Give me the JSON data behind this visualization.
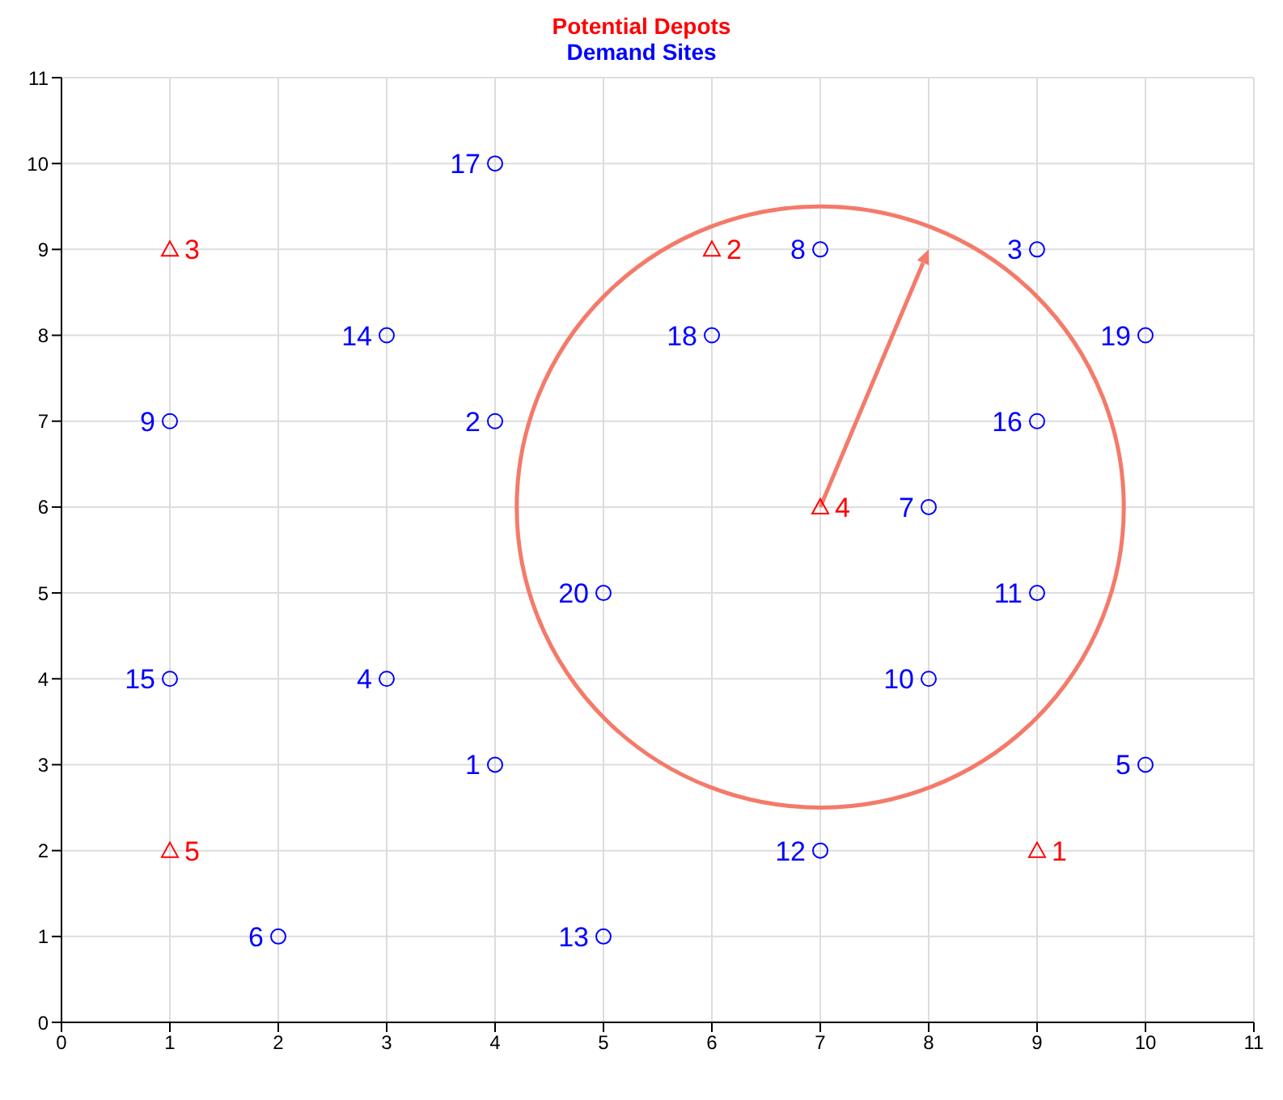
{
  "chart_data": {
    "type": "scatter",
    "title": "Potential Depots",
    "subtitle": "Demand Sites",
    "xlim": [
      0,
      11
    ],
    "ylim": [
      0,
      11
    ],
    "xticks": [
      0,
      1,
      2,
      3,
      4,
      5,
      6,
      7,
      8,
      9,
      10,
      11
    ],
    "yticks": [
      0,
      1,
      2,
      3,
      4,
      5,
      6,
      7,
      8,
      9,
      10,
      11
    ],
    "grid": true,
    "legend": false,
    "series": [
      {
        "color": "#ff0000",
        "marker": "triangle",
        "x": [
          9,
          6,
          1,
          7,
          1
        ],
        "values": [
          2,
          9,
          9,
          6,
          2
        ]
      },
      {
        "color": "#0000ff",
        "marker": "circle",
        "x": [
          4,
          4,
          9,
          3,
          10,
          2,
          8,
          7,
          1,
          8,
          9,
          7,
          5,
          3,
          1,
          9,
          4,
          6,
          10,
          5
        ],
        "values": [
          3,
          7,
          9,
          4,
          3,
          1,
          6,
          9,
          7,
          4,
          5,
          2,
          1,
          8,
          4,
          7,
          10,
          8,
          8,
          5
        ]
      }
    ],
    "annotations": [
      {
        "text": "1",
        "x": 9,
        "y": 2
      },
      {
        "text": "2",
        "x": 6,
        "y": 9
      },
      {
        "text": "3",
        "x": 1,
        "y": 9
      },
      {
        "text": "4",
        "x": 7,
        "y": 6
      },
      {
        "text": "5",
        "x": 1,
        "y": 2
      },
      {
        "text": "1",
        "x": 4,
        "y": 3
      },
      {
        "text": "2",
        "x": 4,
        "y": 7
      },
      {
        "text": "3",
        "x": 9,
        "y": 9
      },
      {
        "text": "4",
        "x": 3,
        "y": 4
      },
      {
        "text": "5",
        "x": 10,
        "y": 3
      },
      {
        "text": "6",
        "x": 2,
        "y": 1
      },
      {
        "text": "7",
        "x": 8,
        "y": 6
      },
      {
        "text": "8",
        "x": 7,
        "y": 9
      },
      {
        "text": "9",
        "x": 1,
        "y": 7
      },
      {
        "text": "10",
        "x": 8,
        "y": 4
      },
      {
        "text": "11",
        "x": 9,
        "y": 5
      },
      {
        "text": "12",
        "x": 7,
        "y": 2
      },
      {
        "text": "13",
        "x": 5,
        "y": 1
      },
      {
        "text": "14",
        "x": 3,
        "y": 8
      },
      {
        "text": "15",
        "x": 1,
        "y": 4
      },
      {
        "text": "16",
        "x": 9,
        "y": 7
      },
      {
        "text": "17",
        "x": 4,
        "y": 10
      },
      {
        "text": "18",
        "x": 6,
        "y": 8
      },
      {
        "text": "19",
        "x": 10,
        "y": 8
      },
      {
        "text": "20",
        "x": 5,
        "y": 5
      }
    ]
  }
}
